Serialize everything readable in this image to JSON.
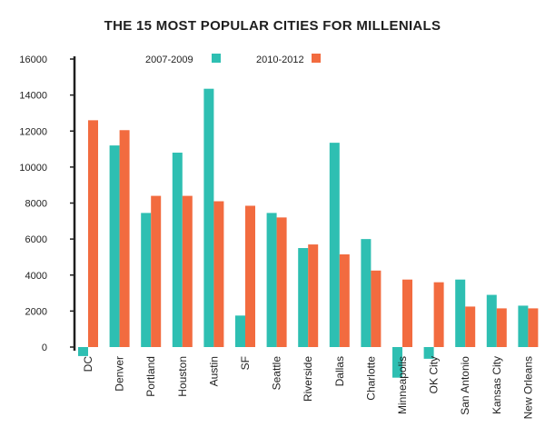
{
  "chart_data": {
    "type": "bar",
    "title": "THE 15 MOST POPULAR CITIES FOR MILLENIALS",
    "xlabel": "",
    "ylabel": "",
    "ylim": [
      -1500,
      16000
    ],
    "yticks": [
      0,
      2000,
      4000,
      6000,
      8000,
      10000,
      12000,
      14000,
      16000
    ],
    "grid": false,
    "legend": "top-left",
    "categories": [
      "DC",
      "Denver",
      "Portland",
      "Houston",
      "Austin",
      "SF",
      "Seattle",
      "Riverside",
      "Dallas",
      "Charlotte",
      "Minneapolis",
      "OK City",
      "San Antonio",
      "Kansas City",
      "New Orleans"
    ],
    "series": [
      {
        "name": "2007-2009",
        "color": "#2ebfb2",
        "values": [
          -500,
          11200,
          7450,
          10800,
          14350,
          1750,
          7450,
          5500,
          11350,
          6000,
          -1700,
          -650,
          3750,
          2900,
          2300
        ]
      },
      {
        "name": "2010-2012",
        "color": "#f26b3f",
        "values": [
          12600,
          12050,
          8400,
          8400,
          8100,
          7850,
          7200,
          5700,
          5150,
          4250,
          3750,
          3600,
          2250,
          2150,
          2150
        ]
      }
    ]
  }
}
